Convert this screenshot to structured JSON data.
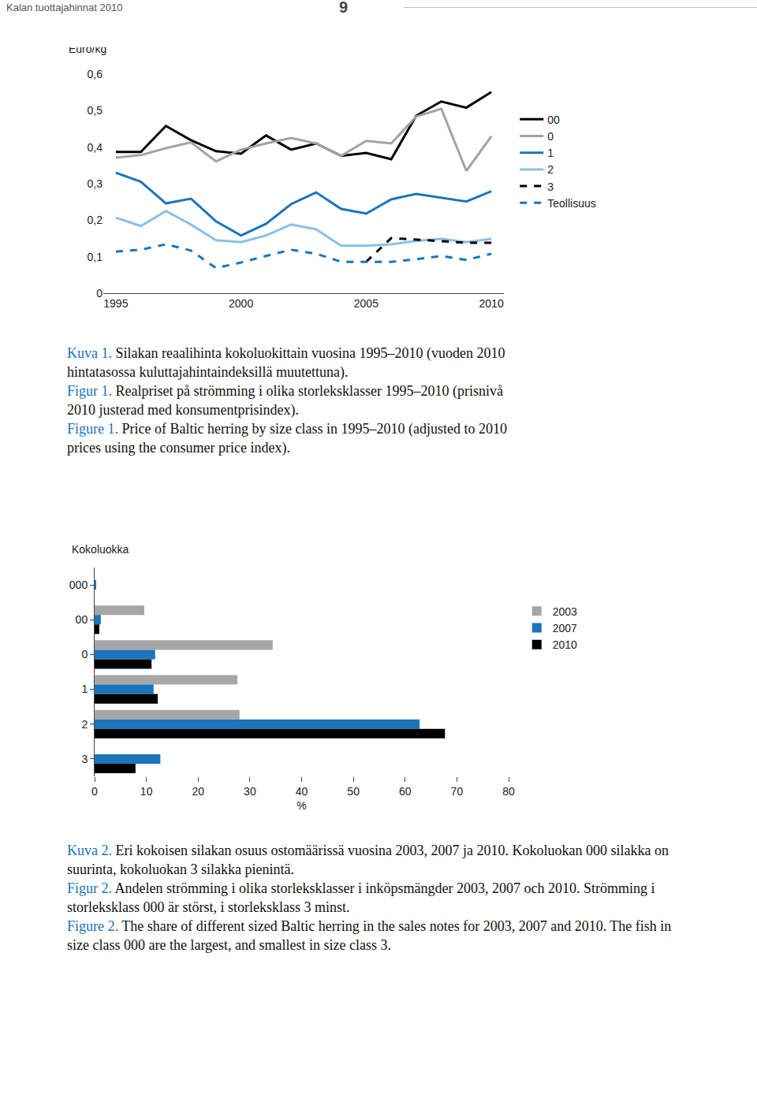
{
  "header": {
    "title": "Kalan tuottajahinnat 2010",
    "page": "9"
  },
  "chart_data": [
    {
      "type": "line",
      "y_label": "Euro/kg",
      "x": [
        1995,
        1996,
        1997,
        1998,
        1999,
        2000,
        2001,
        2002,
        2003,
        2004,
        2005,
        2006,
        2007,
        2008,
        2009,
        2010
      ],
      "xlim": [
        1994.5,
        2010.5
      ],
      "xticks": [
        1995,
        2000,
        2005,
        2010
      ],
      "ylim": [
        0,
        0.6
      ],
      "yticks": [
        0,
        {
          "value": 0.1,
          "label": "0,1"
        },
        {
          "value": 0.2,
          "label": "0,2"
        },
        {
          "value": 0.3,
          "label": "0,3"
        },
        {
          "value": 0.4,
          "label": "0,4"
        },
        {
          "value": 0.5,
          "label": "0,5"
        },
        {
          "value": 0.6,
          "label": "0,6"
        }
      ],
      "grid": false,
      "legend": "right",
      "series": [
        {
          "name": "00",
          "color": "#000000",
          "line_style": "solid",
          "values": [
            0.387,
            0.387,
            0.458,
            0.419,
            0.389,
            0.382,
            0.432,
            0.393,
            0.41,
            0.376,
            0.384,
            0.367,
            0.486,
            0.525,
            0.508,
            0.551
          ]
        },
        {
          "name": "0",
          "color": "#a3a3a3",
          "line_style": "solid",
          "values": [
            0.371,
            0.378,
            0.397,
            0.413,
            0.361,
            0.393,
            0.41,
            0.425,
            0.41,
            0.376,
            0.417,
            0.41,
            0.484,
            0.505,
            0.335,
            0.43
          ]
        },
        {
          "name": "1",
          "color": "#1a75bc",
          "line_style": "solid",
          "values": [
            0.33,
            0.305,
            0.246,
            0.259,
            0.197,
            0.158,
            0.19,
            0.244,
            0.276,
            0.231,
            0.218,
            0.257,
            0.272,
            0.261,
            0.251,
            0.279
          ]
        },
        {
          "name": "2",
          "color": "#8cc0e6",
          "line_style": "solid",
          "values": [
            0.207,
            0.184,
            0.225,
            0.188,
            0.145,
            0.14,
            0.158,
            0.188,
            0.175,
            0.13,
            0.13,
            0.134,
            0.143,
            0.149,
            0.14,
            0.149
          ]
        },
        {
          "name": "3",
          "color": "#000000",
          "line_style": "dash",
          "values": [
            null,
            null,
            null,
            null,
            null,
            null,
            null,
            null,
            null,
            null,
            0.086,
            0.151,
            0.147,
            0.143,
            0.138,
            0.138
          ]
        },
        {
          "name": "Teollisuus",
          "color": "#1a75bc",
          "line_style": "dash",
          "values": [
            0.114,
            0.119,
            0.134,
            0.117,
            0.069,
            0.084,
            0.102,
            0.119,
            0.108,
            0.086,
            0.086,
            0.086,
            0.093,
            0.102,
            0.091,
            0.108
          ]
        }
      ]
    },
    {
      "type": "bar",
      "orientation": "horizontal",
      "y_label": "Kokoluokka",
      "x_label": "%",
      "categories": [
        "000",
        "00",
        "0",
        "1",
        "2",
        "3"
      ],
      "xlim": [
        0,
        80
      ],
      "xticks": [
        0,
        10,
        20,
        30,
        40,
        50,
        60,
        70,
        80
      ],
      "grid": false,
      "legend": "right",
      "series": [
        {
          "name": "2003",
          "color": "#a6a6a6",
          "values": [
            0,
            9.6,
            34.4,
            27.6,
            28.0,
            0
          ]
        },
        {
          "name": "2007",
          "color": "#1a75bc",
          "values": [
            0.3,
            1.2,
            11.7,
            11.4,
            62.8,
            12.7
          ]
        },
        {
          "name": "2010",
          "color": "#000000",
          "values": [
            0,
            0.9,
            11.0,
            12.2,
            67.7,
            7.9
          ]
        }
      ]
    }
  ],
  "captions": [
    [
      {
        "label": "Kuva 1.",
        "text": "Silakan reaalihinta kokoluokittain vuosina 1995–2010 (vuoden 2010 hintatasossa kuluttajahintaindeksillä muutettuna)."
      },
      {
        "label": "Figur 1.",
        "text": "Realpriset på strömming i olika storleksklasser 1995–2010 (prisnivå 2010 justerad med konsumentprisindex)."
      },
      {
        "label": "Figure 1.",
        "text": "Price of Baltic herring by size class in 1995–2010 (adjusted to 2010 prices using the consumer price index)."
      }
    ],
    [
      {
        "label": "Kuva 2.",
        "text": "Eri kokoisen silakan osuus ostomäärissä vuosina 2003, 2007 ja 2010. Kokoluokan 000 silakka on suurinta, kokoluokan 3 silakka pienintä."
      },
      {
        "label": "Figur 2.",
        "text": "Andelen strömming i olika storleksklasser i inköpsmängder 2003, 2007 och 2010. Strömming i storleksklass 000 är störst, i storleksklass 3 minst."
      },
      {
        "label": "Figure 2.",
        "text": "The share of different sized Baltic herring in the sales notes for 2003, 2007 and 2010. The fish in size class 000 are the largest, and smallest in size class 3."
      }
    ]
  ]
}
